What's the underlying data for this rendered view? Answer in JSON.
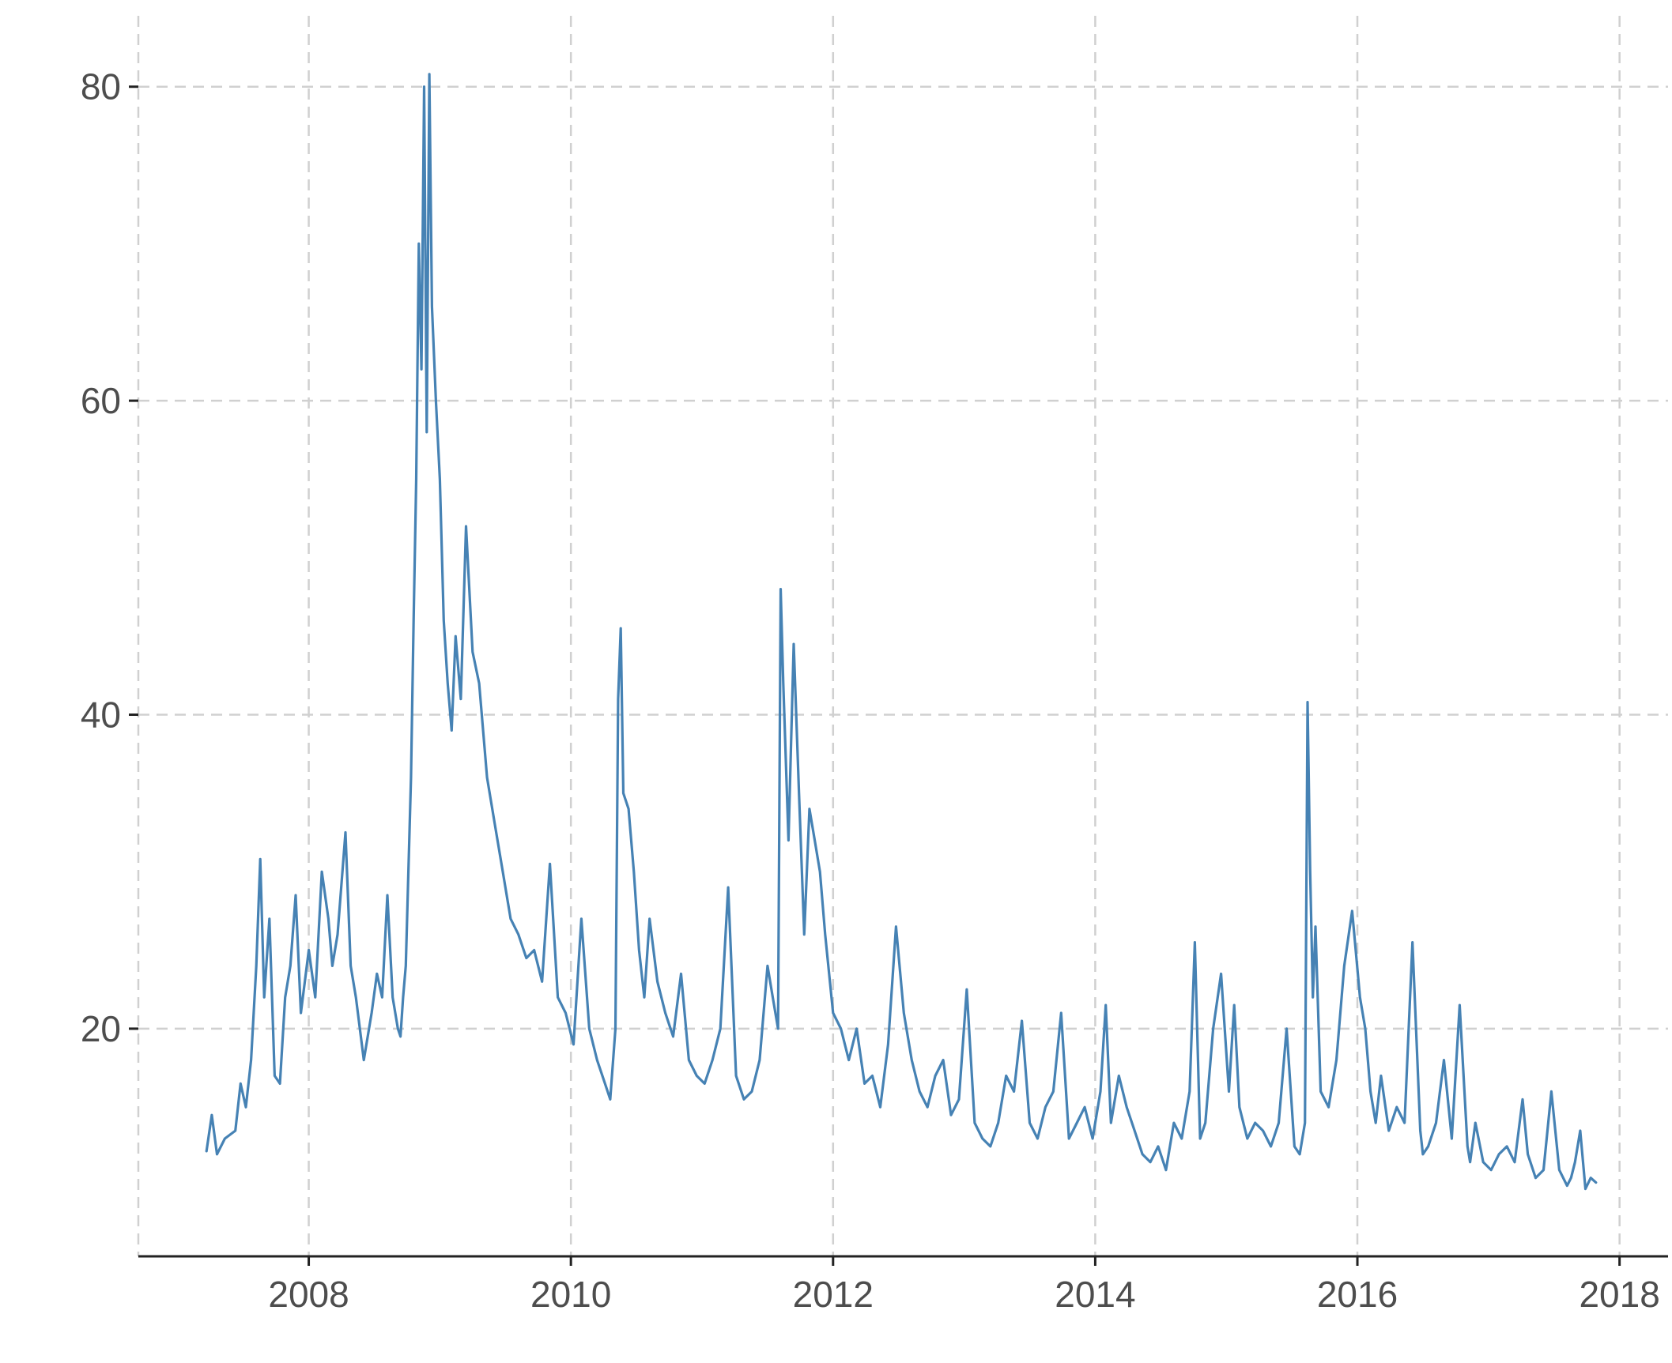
{
  "chart_data": {
    "type": "line",
    "title": "",
    "xlabel": "",
    "ylabel": "",
    "x_ticks": [
      "2008",
      "2010",
      "2012",
      "2014",
      "2016",
      "2018"
    ],
    "y_ticks": [
      "20",
      "40",
      "60",
      "80"
    ],
    "xlim": [
      2006.7,
      2018.37
    ],
    "ylim": [
      5.5,
      82
    ],
    "grid": true,
    "legend": "none",
    "colors": {
      "series": "#4682b4",
      "grid": "#d0d0d0",
      "axis": "#222222",
      "text": "#4d4d4d"
    },
    "series": [
      {
        "x": [
          2007.22,
          2007.26,
          2007.3,
          2007.36,
          2007.44,
          2007.48,
          2007.52,
          2007.56,
          2007.6,
          2007.63,
          2007.66,
          2007.7,
          2007.74,
          2007.78,
          2007.82,
          2007.86,
          2007.9,
          2007.94,
          2008.0,
          2008.05,
          2008.1,
          2008.15,
          2008.18,
          2008.22,
          2008.28,
          2008.32,
          2008.36,
          2008.42,
          2008.48,
          2008.52,
          2008.56,
          2008.6,
          2008.64,
          2008.68,
          2008.7,
          2008.72,
          2008.74,
          2008.76,
          2008.78,
          2008.8,
          2008.82,
          2008.84,
          2008.86,
          2008.88,
          2008.9,
          2008.92,
          2008.94,
          2008.97,
          2009.0,
          2009.03,
          2009.06,
          2009.09,
          2009.12,
          2009.16,
          2009.2,
          2009.25,
          2009.3,
          2009.36,
          2009.42,
          2009.48,
          2009.54,
          2009.6,
          2009.66,
          2009.72,
          2009.78,
          2009.84,
          2009.9,
          2009.96,
          2010.02,
          2010.08,
          2010.14,
          2010.2,
          2010.26,
          2010.3,
          2010.34,
          2010.36,
          2010.38,
          2010.4,
          2010.44,
          2010.48,
          2010.52,
          2010.56,
          2010.6,
          2010.66,
          2010.72,
          2010.78,
          2010.84,
          2010.9,
          2010.96,
          2011.02,
          2011.08,
          2011.14,
          2011.2,
          2011.26,
          2011.32,
          2011.38,
          2011.44,
          2011.5,
          2011.54,
          2011.58,
          2011.6,
          2011.62,
          2011.66,
          2011.7,
          2011.74,
          2011.78,
          2011.82,
          2011.86,
          2011.9,
          2011.94,
          2012.0,
          2012.06,
          2012.12,
          2012.18,
          2012.24,
          2012.3,
          2012.36,
          2012.42,
          2012.48,
          2012.54,
          2012.6,
          2012.66,
          2012.72,
          2012.78,
          2012.84,
          2012.9,
          2012.96,
          2013.02,
          2013.08,
          2013.14,
          2013.2,
          2013.26,
          2013.32,
          2013.38,
          2013.44,
          2013.5,
          2013.56,
          2013.62,
          2013.68,
          2013.74,
          2013.8,
          2013.86,
          2013.92,
          2013.98,
          2014.04,
          2014.08,
          2014.12,
          2014.18,
          2014.24,
          2014.3,
          2014.36,
          2014.42,
          2014.48,
          2014.54,
          2014.6,
          2014.66,
          2014.72,
          2014.76,
          2014.8,
          2014.84,
          2014.9,
          2014.96,
          2015.02,
          2015.06,
          2015.1,
          2015.16,
          2015.22,
          2015.28,
          2015.34,
          2015.4,
          2015.46,
          2015.52,
          2015.56,
          2015.6,
          2015.62,
          2015.64,
          2015.66,
          2015.68,
          2015.72,
          2015.78,
          2015.84,
          2015.9,
          2015.96,
          2016.02,
          2016.06,
          2016.1,
          2016.14,
          2016.18,
          2016.24,
          2016.3,
          2016.36,
          2016.42,
          2016.48,
          2016.5,
          2016.54,
          2016.6,
          2016.66,
          2016.72,
          2016.78,
          2016.84,
          2016.86,
          2016.9,
          2016.96,
          2017.02,
          2017.08,
          2017.14,
          2017.2,
          2017.26,
          2017.3,
          2017.36,
          2017.42,
          2017.48,
          2017.54,
          2017.6,
          2017.63,
          2017.66,
          2017.7,
          2017.74,
          2017.78,
          2017.82
        ],
        "values": [
          12.2,
          14.5,
          12.0,
          13.0,
          13.5,
          16.5,
          15.0,
          18.0,
          24.0,
          30.8,
          22.0,
          27.0,
          17.0,
          16.5,
          22.0,
          24.0,
          28.5,
          21.0,
          25.0,
          22.0,
          30.0,
          27.0,
          24.0,
          26.0,
          32.5,
          24.0,
          22.0,
          18.0,
          21.0,
          23.5,
          22.0,
          28.5,
          22.0,
          20.0,
          19.5,
          22.0,
          24.0,
          30.0,
          36.0,
          46.0,
          55.0,
          70.0,
          62.0,
          80.0,
          58.0,
          80.8,
          66.0,
          60.0,
          55.0,
          46.0,
          42.0,
          39.0,
          45.0,
          41.0,
          52.0,
          44.0,
          42.0,
          36.0,
          33.0,
          30.0,
          27.0,
          26.0,
          24.5,
          25.0,
          23.0,
          30.5,
          22.0,
          21.0,
          19.0,
          27.0,
          20.0,
          18.0,
          16.5,
          15.5,
          20.0,
          41.0,
          45.5,
          35.0,
          34.0,
          30.0,
          25.0,
          22.0,
          27.0,
          23.0,
          21.0,
          19.5,
          23.5,
          18.0,
          17.0,
          16.5,
          18.0,
          20.0,
          29.0,
          17.0,
          15.5,
          16.0,
          18.0,
          24.0,
          22.0,
          20.0,
          48.0,
          42.0,
          32.0,
          44.5,
          35.0,
          26.0,
          34.0,
          32.0,
          30.0,
          26.0,
          21.0,
          20.0,
          18.0,
          20.0,
          16.5,
          17.0,
          15.0,
          19.0,
          26.5,
          21.0,
          18.0,
          16.0,
          15.0,
          17.0,
          18.0,
          14.5,
          15.5,
          22.5,
          14.0,
          13.0,
          12.5,
          14.0,
          17.0,
          16.0,
          20.5,
          14.0,
          13.0,
          15.0,
          16.0,
          21.0,
          13.0,
          14.0,
          15.0,
          13.0,
          16.0,
          21.5,
          14.0,
          17.0,
          15.0,
          13.5,
          12.0,
          11.5,
          12.5,
          11.0,
          14.0,
          13.0,
          16.0,
          25.5,
          13.0,
          14.0,
          20.0,
          23.5,
          16.0,
          21.5,
          15.0,
          13.0,
          14.0,
          13.5,
          12.5,
          14.0,
          20.0,
          12.5,
          12.0,
          14.0,
          40.8,
          30.0,
          22.0,
          26.5,
          16.0,
          15.0,
          18.0,
          24.0,
          27.5,
          22.0,
          20.0,
          16.0,
          14.0,
          17.0,
          13.5,
          15.0,
          14.0,
          25.5,
          13.5,
          12.0,
          12.5,
          14.0,
          18.0,
          13.0,
          21.5,
          12.5,
          11.5,
          14.0,
          11.5,
          11.0,
          12.0,
          12.5,
          11.5,
          15.5,
          12.0,
          10.5,
          11.0,
          16.0,
          11.0,
          10.0,
          10.5,
          11.5,
          13.5,
          9.8,
          10.5,
          10.2
        ]
      }
    ]
  }
}
